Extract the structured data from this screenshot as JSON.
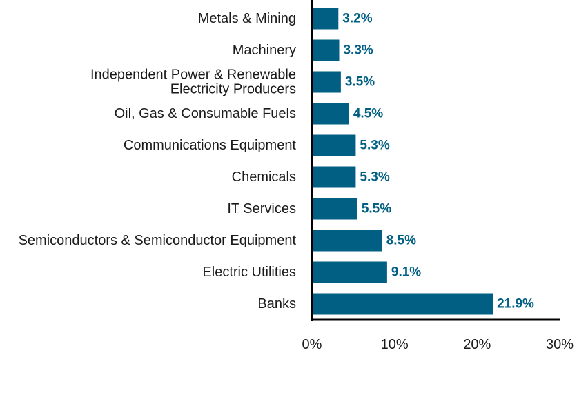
{
  "chart_data": {
    "type": "bar",
    "orientation": "horizontal",
    "categories": [
      [
        "Metals & Mining"
      ],
      [
        "Machinery"
      ],
      [
        "Independent Power & Renewable",
        "Electricity Producers"
      ],
      [
        "Oil, Gas & Consumable Fuels"
      ],
      [
        "Communications Equipment"
      ],
      [
        "Chemicals"
      ],
      [
        "IT Services"
      ],
      [
        "Semiconductors & Semiconductor Equipment"
      ],
      [
        "Electric Utilities"
      ],
      [
        "Banks"
      ]
    ],
    "values": [
      3.2,
      3.3,
      3.5,
      4.5,
      5.3,
      5.3,
      5.5,
      8.5,
      9.1,
      21.9
    ],
    "value_labels": [
      "3.2%",
      "3.3%",
      "3.5%",
      "4.5%",
      "5.3%",
      "5.3%",
      "5.5%",
      "8.5%",
      "9.1%",
      "21.9%"
    ],
    "xlim": [
      0,
      30
    ],
    "xticks": [
      0,
      10,
      20,
      30
    ],
    "xtick_labels": [
      "0%",
      "10%",
      "20%",
      "30%"
    ],
    "grid": false,
    "title": "",
    "xlabel": "",
    "ylabel": "",
    "colors": {
      "bar": "#005f83",
      "value_label": "#005f83",
      "axis": "#000000"
    }
  }
}
